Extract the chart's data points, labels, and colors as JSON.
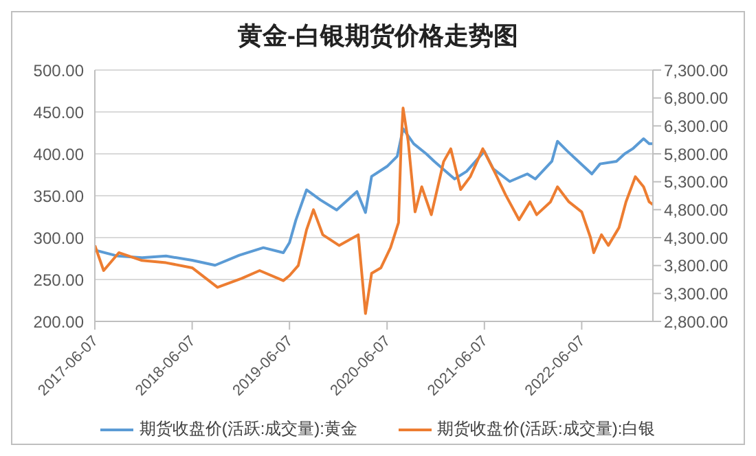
{
  "chart_data": {
    "type": "line",
    "title": "黄金-白银期货价格走势图",
    "xlim": [
      "2017-06-07",
      "2023-03-01"
    ],
    "xticks": [
      "2017-06-07",
      "2018-06-07",
      "2019-06-07",
      "2020-06-07",
      "2021-06-07",
      "2022-06-07"
    ],
    "ylim": [
      200,
      500
    ],
    "yticks": [
      {
        "value": 200,
        "label": "200.00"
      },
      {
        "value": 250,
        "label": "250.00"
      },
      {
        "value": 300,
        "label": "300.00"
      },
      {
        "value": 350,
        "label": "350.00"
      },
      {
        "value": 400,
        "label": "400.00"
      },
      {
        "value": 450,
        "label": "450.00"
      },
      {
        "value": 500,
        "label": "500.00"
      }
    ],
    "y2lim": [
      2800,
      7300
    ],
    "y2ticks": [
      {
        "value": 2800,
        "label": "2,800.00"
      },
      {
        "value": 3300,
        "label": "3,300.00"
      },
      {
        "value": 3800,
        "label": "3,800.00"
      },
      {
        "value": 4300,
        "label": "4,300.00"
      },
      {
        "value": 4800,
        "label": "4,800.00"
      },
      {
        "value": 5300,
        "label": "5,300.00"
      },
      {
        "value": 5800,
        "label": "5,800.00"
      },
      {
        "value": 6300,
        "label": "6,300.00"
      },
      {
        "value": 6800,
        "label": "6,800.00"
      },
      {
        "value": 7300,
        "label": "7,300.00"
      }
    ],
    "grid": "y",
    "legend": "bottom",
    "marker": "none",
    "line_style": "solid",
    "series": [
      {
        "name": "期货收盘价(活跃:成交量):黄金",
        "color": "#5b9bd5",
        "x": [
          "2017-06-07",
          "2017-09-01",
          "2017-12-01",
          "2018-03-01",
          "2018-06-07",
          "2018-09-01",
          "2018-12-01",
          "2019-03-01",
          "2019-05-15",
          "2019-06-07",
          "2019-07-01",
          "2019-08-10",
          "2019-10-01",
          "2019-12-01",
          "2020-02-15",
          "2020-03-18",
          "2020-04-10",
          "2020-06-07",
          "2020-07-15",
          "2020-08-06",
          "2020-09-15",
          "2020-11-01",
          "2020-12-01",
          "2021-02-15",
          "2021-04-01",
          "2021-06-07",
          "2021-07-10",
          "2021-09-10",
          "2021-11-15",
          "2021-12-15",
          "2022-02-15",
          "2022-03-08",
          "2022-04-15",
          "2022-05-15",
          "2022-07-15",
          "2022-08-15",
          "2022-10-15",
          "2022-11-15",
          "2022-12-15",
          "2023-01-25",
          "2023-02-15",
          "2023-03-01"
        ],
        "values": [
          285,
          278,
          276,
          278,
          273,
          267,
          279,
          288,
          282,
          294,
          321,
          357,
          345,
          333,
          355,
          330,
          373,
          385,
          397,
          430,
          412,
          400,
          391,
          370,
          379,
          403,
          382,
          367,
          376,
          370,
          391,
          415,
          403,
          394,
          376,
          388,
          391,
          400,
          406,
          418,
          412,
          412
        ]
      },
      {
        "name": "期货收盘价(活跃:成交量):白银",
        "color": "#ed7d31",
        "axis": "y2",
        "x": [
          "2017-06-07",
          "2017-07-10",
          "2017-09-05",
          "2017-12-01",
          "2018-03-01",
          "2018-06-07",
          "2018-09-10",
          "2018-12-10",
          "2019-02-15",
          "2019-05-15",
          "2019-06-07",
          "2019-07-10",
          "2019-08-10",
          "2019-09-05",
          "2019-10-10",
          "2019-12-10",
          "2020-02-20",
          "2020-03-18",
          "2020-04-10",
          "2020-05-15",
          "2020-06-20",
          "2020-07-20",
          "2020-07-30",
          "2020-08-06",
          "2020-08-25",
          "2020-09-20",
          "2020-10-15",
          "2020-11-20",
          "2021-01-05",
          "2021-02-01",
          "2021-03-10",
          "2021-04-15",
          "2021-06-01",
          "2021-07-15",
          "2021-08-25",
          "2021-10-15",
          "2021-11-25",
          "2021-12-20",
          "2022-02-10",
          "2022-03-08",
          "2022-04-20",
          "2022-06-07",
          "2022-07-10",
          "2022-07-22",
          "2022-08-20",
          "2022-09-15",
          "2022-10-25",
          "2022-11-20",
          "2022-12-25",
          "2023-01-25",
          "2023-02-15",
          "2023-03-01"
        ],
        "values": [
          4160,
          3710,
          4030,
          3890,
          3850,
          3760,
          3410,
          3570,
          3710,
          3530,
          3620,
          3800,
          4440,
          4800,
          4350,
          4160,
          4350,
          2940,
          3660,
          3760,
          4120,
          4570,
          6030,
          6620,
          6030,
          4760,
          5210,
          4710,
          5660,
          5890,
          5160,
          5390,
          5890,
          5480,
          5070,
          4620,
          4940,
          4710,
          4940,
          5210,
          4940,
          4760,
          4300,
          4030,
          4350,
          4160,
          4480,
          4940,
          5390,
          5210,
          4940,
          4890
        ]
      }
    ]
  }
}
